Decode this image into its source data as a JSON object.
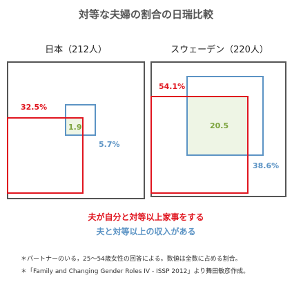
{
  "title": "対等な夫婦の割合の日瑞比較",
  "colors": {
    "red": "#e0141e",
    "blue": "#5b93c4",
    "overlap": "#eef5e5",
    "frame": "#555555"
  },
  "panels": [
    {
      "label": "日本（212人）",
      "red_value": "32.5%",
      "blue_value": "5.7%",
      "overlap_value": "1.9"
    },
    {
      "label": "スウェーデン（220人）",
      "red_value": "54.1%",
      "blue_value": "38.6%",
      "overlap_value": "20.5"
    }
  ],
  "legend": {
    "red": "夫が自分と対等以上家事をする",
    "blue": "夫と対等以上の収入がある"
  },
  "notes": [
    "＊パートナーのいる，25～54歳女性の回答による。数値は全数に占める割合。",
    "＊「Family and Changing Gender Roles IV - ISSP 2012」より舞田敏彦作成。"
  ]
}
